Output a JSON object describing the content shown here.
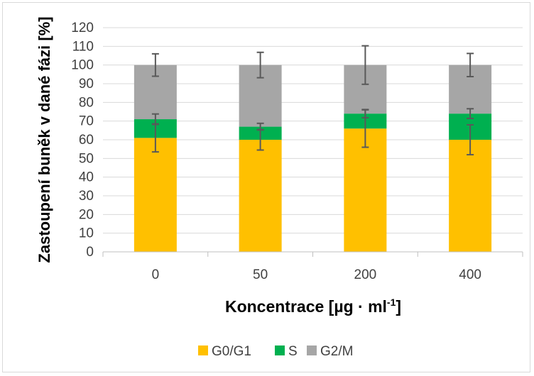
{
  "chart_data": {
    "type": "bar",
    "stacked": true,
    "categories": [
      "0",
      "50",
      "200",
      "400"
    ],
    "series": [
      {
        "name": "G0/G1",
        "color": "#ffc000",
        "values": [
          61,
          60,
          66,
          60
        ],
        "error": [
          7.5,
          5.5,
          10,
          8
        ]
      },
      {
        "name": "S",
        "color": "#00b050",
        "values": [
          10,
          7,
          8,
          14
        ],
        "error": [
          2.8,
          1.8,
          2.2,
          2.6
        ]
      },
      {
        "name": "G2/M",
        "color": "#a6a6a6",
        "values": [
          29,
          33,
          26,
          26
        ],
        "error": [
          6,
          6.8,
          10.3,
          6.2
        ]
      }
    ],
    "xlabel_main": "Koncentrace [µg · ml",
    "xlabel_sup": "-1",
    "xlabel_end": "]",
    "ylabel": "Zastoupení buněk v dané fázi [%]",
    "ylim": [
      0,
      120
    ],
    "yticks": [
      0,
      10,
      20,
      30,
      40,
      50,
      60,
      70,
      80,
      90,
      100,
      110,
      120
    ],
    "grid": true,
    "legend_position": "bottom"
  }
}
